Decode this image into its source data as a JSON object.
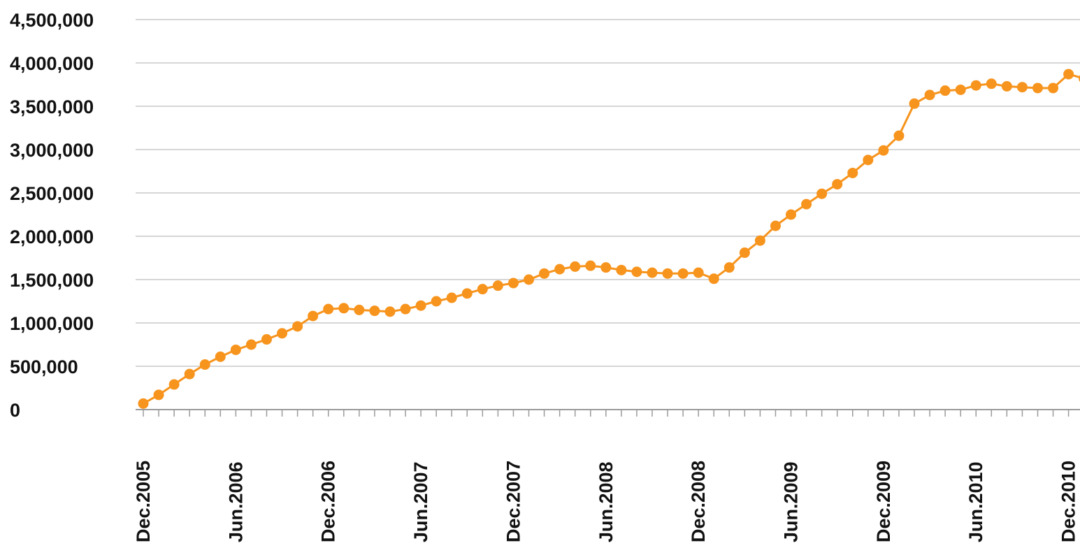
{
  "chart_data": {
    "type": "line",
    "title": "",
    "xlabel": "",
    "ylabel": "",
    "ylim": [
      0,
      4500000
    ],
    "yticks": [
      0,
      500000,
      1000000,
      1500000,
      2000000,
      2500000,
      3000000,
      3500000,
      4000000,
      4500000
    ],
    "ytick_labels": [
      "0",
      "500,000",
      "1,000,000",
      "1,500,000",
      "2,000,000",
      "2,500,000",
      "3,000,000",
      "3,500,000",
      "4,000,000",
      "4,500,000"
    ],
    "xtick_labels": [
      "Dec.2005",
      "Jun.2006",
      "Dec.2006",
      "Jun.2007",
      "Dec.2007",
      "Jun.2008",
      "Dec.2008",
      "Jun.2009",
      "Dec.2009",
      "Jun.2010",
      "Dec.2010"
    ],
    "grid": true,
    "legend": "none",
    "line_color": "#f7941d",
    "series": [
      {
        "x": [
          "Dec.2005",
          "Jan.2006",
          "Feb.2006",
          "Mar.2006",
          "Apr.2006",
          "May.2006",
          "Jun.2006",
          "Jul.2006",
          "Aug.2006",
          "Sep.2006",
          "Oct.2006",
          "Nov.2006",
          "Dec.2006",
          "Jan.2007",
          "Feb.2007",
          "Mar.2007",
          "Apr.2007",
          "May.2007",
          "Jun.2007",
          "Jul.2007",
          "Aug.2007",
          "Sep.2007",
          "Oct.2007",
          "Nov.2007",
          "Dec.2007",
          "Jan.2008",
          "Feb.2008",
          "Mar.2008",
          "Apr.2008",
          "May.2008",
          "Jun.2008",
          "Jul.2008",
          "Aug.2008",
          "Sep.2008",
          "Oct.2008",
          "Nov.2008",
          "Dec.2008",
          "Jan.2009",
          "Feb.2009",
          "Mar.2009",
          "Apr.2009",
          "May.2009",
          "Jun.2009",
          "Jul.2009",
          "Aug.2009",
          "Sep.2009",
          "Oct.2009",
          "Nov.2009",
          "Dec.2009",
          "Jan.2010",
          "Feb.2010",
          "Mar.2010",
          "Apr.2010",
          "May.2010",
          "Jun.2010",
          "Jul.2010",
          "Aug.2010",
          "Sep.2010",
          "Oct.2010",
          "Nov.2010",
          "Dec.2010",
          "Jan.2011"
        ],
        "values": [
          70000,
          170000,
          290000,
          410000,
          520000,
          610000,
          690000,
          750000,
          810000,
          880000,
          960000,
          1080000,
          1160000,
          1170000,
          1150000,
          1140000,
          1130000,
          1160000,
          1200000,
          1250000,
          1290000,
          1340000,
          1390000,
          1430000,
          1460000,
          1500000,
          1570000,
          1620000,
          1650000,
          1660000,
          1640000,
          1610000,
          1590000,
          1580000,
          1570000,
          1570000,
          1580000,
          1510000,
          1640000,
          1810000,
          1950000,
          2120000,
          2250000,
          2370000,
          2490000,
          2600000,
          2730000,
          2880000,
          2990000,
          3160000,
          3530000,
          3630000,
          3680000,
          3690000,
          3740000,
          3760000,
          3730000,
          3720000,
          3710000,
          3710000,
          3870000,
          3820000
        ]
      }
    ]
  }
}
